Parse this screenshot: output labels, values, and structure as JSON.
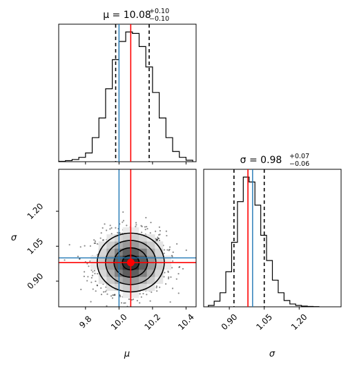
{
  "chart_data": [
    {
      "type": "histogram",
      "panel": "mu-marginal",
      "title": {
        "prefix": "μ = 10.08",
        "sup": "+0.10",
        "sub": "−0.10"
      },
      "bins": [
        9.64,
        9.68,
        9.72,
        9.76,
        9.8,
        9.84,
        9.88,
        9.92,
        9.96,
        10.0,
        10.04,
        10.08,
        10.12,
        10.16,
        10.2,
        10.24,
        10.28,
        10.32,
        10.36,
        10.4,
        10.44
      ],
      "counts": [
        0.5,
        1.5,
        3,
        6,
        12,
        33,
        60,
        100,
        140,
        165,
        178,
        176,
        158,
        130,
        95,
        60,
        33,
        14,
        6,
        2
      ],
      "xlim": [
        9.64,
        10.46
      ],
      "quantiles": [
        9.98,
        10.08,
        10.18
      ],
      "truth": 10.07,
      "estimate": 10.0,
      "colors": {
        "hist": "#000000",
        "truth": "#ff0000",
        "estimate": "#1f77b4",
        "quantile": "#000000"
      }
    },
    {
      "type": "scatter-density",
      "panel": "mu-sigma-joint",
      "xlim": [
        9.64,
        10.46
      ],
      "ylim": [
        0.79,
        1.38
      ],
      "x_center": 10.07,
      "y_center": 0.98,
      "x_sd": 0.1,
      "y_sd": 0.063,
      "truth_point": [
        10.07,
        0.98
      ],
      "estimate_point": [
        10.0,
        1.0
      ],
      "yticks": [
        "1.20",
        "1.05",
        "0.90"
      ],
      "ytick_values": [
        1.2,
        1.05,
        0.9
      ],
      "ylabel": "σ",
      "colors": {
        "points": "#000000",
        "truth": "#ff0000",
        "estimate": "#1f77b4",
        "contour": "#000000"
      }
    },
    {
      "type": "histogram",
      "panel": "sigma-marginal",
      "title": {
        "prefix": "σ = 0.98",
        "sup": "+0.07",
        "sub": "−0.06"
      },
      "bins": [
        0.81,
        0.835,
        0.86,
        0.885,
        0.91,
        0.935,
        0.96,
        0.985,
        1.01,
        1.035,
        1.06,
        1.085,
        1.11,
        1.135,
        1.16,
        1.185,
        1.21,
        1.235,
        1.26,
        1.285
      ],
      "counts": [
        2,
        8,
        20,
        50,
        92,
        150,
        185,
        178,
        145,
        102,
        66,
        38,
        20,
        9,
        4,
        2,
        1,
        0.5,
        0.3
      ],
      "xlim": [
        0.79,
        1.38
      ],
      "quantiles": [
        0.92,
        0.98,
        1.05
      ],
      "truth": 0.98,
      "estimate": 1.0,
      "colors": {
        "hist": "#000000",
        "truth": "#ff0000",
        "estimate": "#1f77b4",
        "quantile": "#000000"
      }
    }
  ],
  "axes": {
    "mu_ticks": [
      "9.8",
      "10.0",
      "10.2",
      "10.4"
    ],
    "mu_tick_values": [
      9.8,
      10.0,
      10.2,
      10.4
    ],
    "sigma_ticks": [
      "0.90",
      "1.05",
      "1.20"
    ],
    "sigma_tick_values": [
      0.9,
      1.05,
      1.2
    ],
    "xlabel_mu": "μ",
    "xlabel_sigma": "σ"
  }
}
